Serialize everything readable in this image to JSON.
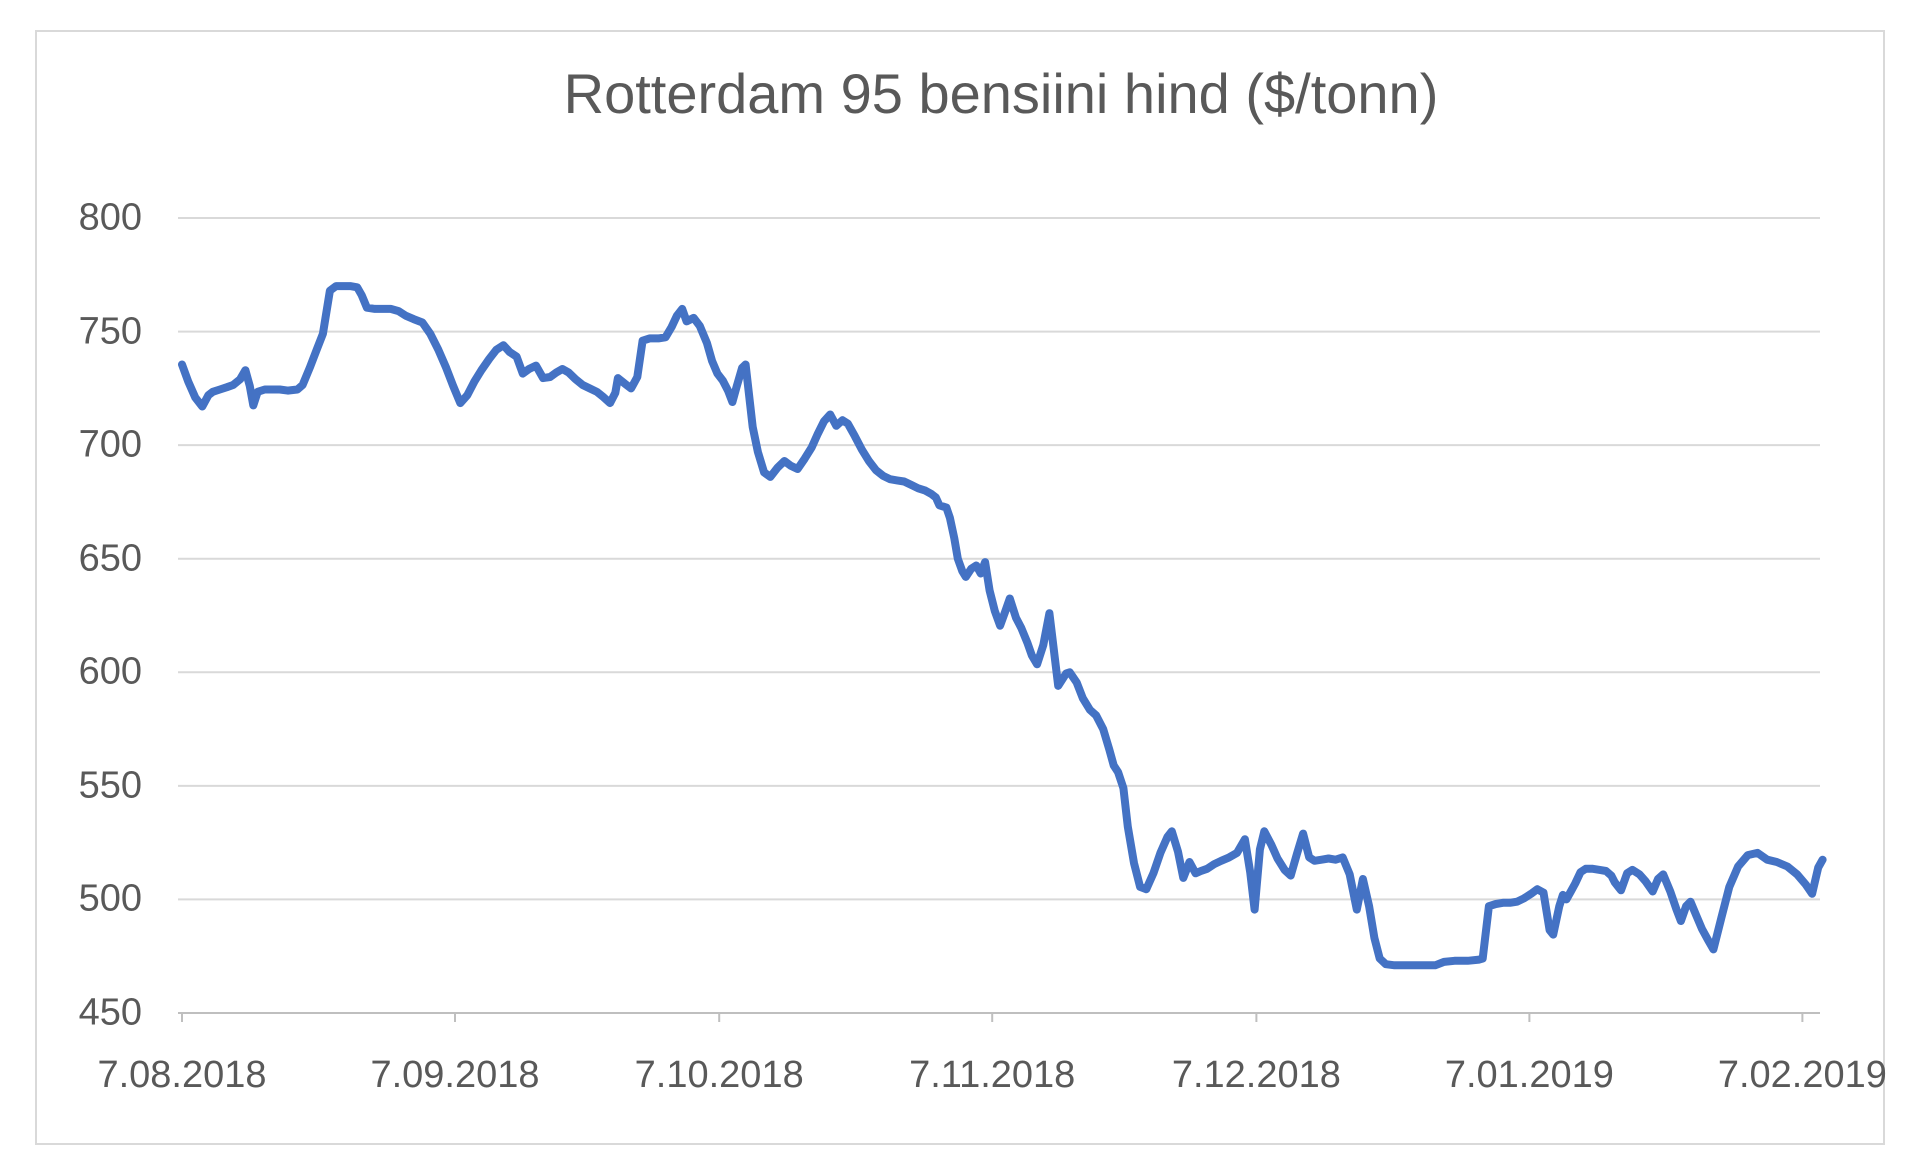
{
  "window": {
    "background": "#ffffff",
    "frame_border_color": "#d9d9d9"
  },
  "chart_data": {
    "type": "line",
    "title": "Rotterdam 95 bensiini hind ($/tonn)",
    "xlabel": "",
    "ylabel": "",
    "title_color": "#595959",
    "axis_text_color": "#595959",
    "gridline_color": "#d9d9d9",
    "axis_line_color": "#bfbfbf",
    "grid": true,
    "legend": "none",
    "ylim": [
      450,
      800
    ],
    "y_ticks": [
      800,
      750,
      700,
      650,
      600,
      550,
      500,
      450
    ],
    "x_range_days": [
      0,
      186
    ],
    "x_ticks": [
      {
        "day": 0,
        "label": "7.08.2018"
      },
      {
        "day": 31,
        "label": "7.09.2018"
      },
      {
        "day": 61,
        "label": "7.10.2018"
      },
      {
        "day": 92,
        "label": "7.11.2018"
      },
      {
        "day": 122,
        "label": "7.12.2018"
      },
      {
        "day": 153,
        "label": "7.01.2019"
      },
      {
        "day": 184,
        "label": "7.02.2019"
      }
    ],
    "series": [
      {
        "name": "Rotterdam 95 bensiini hind ($/tonn)",
        "color": "#4472c4",
        "stroke_width": 8,
        "points": [
          [
            0,
            735.5
          ],
          [
            0.7,
            728
          ],
          [
            1.5,
            721
          ],
          [
            2.3,
            717
          ],
          [
            3,
            722
          ],
          [
            3.5,
            723.5
          ],
          [
            4.3,
            724.5
          ],
          [
            5.1,
            725.5
          ],
          [
            5.8,
            726.5
          ],
          [
            6.6,
            729
          ],
          [
            7.2,
            733
          ],
          [
            7.7,
            726
          ],
          [
            8.1,
            717.5
          ],
          [
            8.6,
            723.5
          ],
          [
            9.4,
            724.5
          ],
          [
            10.2,
            724.5
          ],
          [
            11.1,
            724.5
          ],
          [
            12,
            724
          ],
          [
            13.1,
            724.5
          ],
          [
            13.7,
            726.5
          ],
          [
            14.5,
            734
          ],
          [
            15.3,
            742
          ],
          [
            16,
            749
          ],
          [
            16.8,
            768
          ],
          [
            17.5,
            770
          ],
          [
            18.3,
            770
          ],
          [
            19.1,
            770
          ],
          [
            19.9,
            769.5
          ],
          [
            20.4,
            766
          ],
          [
            21,
            760.5
          ],
          [
            21.9,
            760
          ],
          [
            22.8,
            760
          ],
          [
            23.7,
            760
          ],
          [
            24.6,
            759
          ],
          [
            25.4,
            757
          ],
          [
            26.3,
            755.5
          ],
          [
            27.3,
            754
          ],
          [
            28.2,
            749
          ],
          [
            29.1,
            742
          ],
          [
            30,
            734
          ],
          [
            30.8,
            726
          ],
          [
            31.6,
            718.5
          ],
          [
            32.4,
            722
          ],
          [
            33.2,
            728
          ],
          [
            34,
            733
          ],
          [
            34.9,
            738
          ],
          [
            35.7,
            742
          ],
          [
            36.5,
            744
          ],
          [
            37.2,
            741
          ],
          [
            38,
            739
          ],
          [
            38.7,
            731.5
          ],
          [
            39.4,
            733.5
          ],
          [
            40.2,
            735
          ],
          [
            41,
            729.5
          ],
          [
            41.8,
            730
          ],
          [
            42.5,
            732
          ],
          [
            43.2,
            733.5
          ],
          [
            43.9,
            732
          ],
          [
            44.7,
            729
          ],
          [
            45.5,
            726.5
          ],
          [
            46.3,
            725
          ],
          [
            47.1,
            723.5
          ],
          [
            47.9,
            721
          ],
          [
            48.6,
            718.5
          ],
          [
            49.2,
            723
          ],
          [
            49.5,
            729.5
          ],
          [
            50.3,
            727
          ],
          [
            51,
            725
          ],
          [
            51.7,
            730
          ],
          [
            52.3,
            746
          ],
          [
            53.1,
            747
          ],
          [
            54.1,
            747
          ],
          [
            54.9,
            747.5
          ],
          [
            55.6,
            752
          ],
          [
            56.2,
            757
          ],
          [
            56.8,
            760
          ],
          [
            57.3,
            754.5
          ],
          [
            58.1,
            756
          ],
          [
            58.8,
            752.5
          ],
          [
            59.6,
            745
          ],
          [
            60.2,
            737
          ],
          [
            60.8,
            731.5
          ],
          [
            61.4,
            728.5
          ],
          [
            62,
            724
          ],
          [
            62.5,
            719
          ],
          [
            63,
            726
          ],
          [
            63.6,
            734
          ],
          [
            64,
            735.5
          ],
          [
            64.8,
            708
          ],
          [
            65.4,
            697
          ],
          [
            66.1,
            688
          ],
          [
            66.8,
            686
          ],
          [
            67.6,
            690
          ],
          [
            68.4,
            693
          ],
          [
            69.1,
            691
          ],
          [
            69.9,
            689.5
          ],
          [
            70.7,
            694
          ],
          [
            71.5,
            699
          ],
          [
            72.2,
            705
          ],
          [
            72.9,
            710.5
          ],
          [
            73.6,
            713.5
          ],
          [
            74.3,
            708.5
          ],
          [
            75,
            711
          ],
          [
            75.6,
            709.5
          ],
          [
            76.4,
            704
          ],
          [
            77.2,
            698
          ],
          [
            78,
            693
          ],
          [
            78.8,
            689
          ],
          [
            79.6,
            686.5
          ],
          [
            80.4,
            685
          ],
          [
            81.2,
            684.5
          ],
          [
            82,
            684
          ],
          [
            82.8,
            682.5
          ],
          [
            83.6,
            681
          ],
          [
            84.4,
            680
          ],
          [
            85.1,
            678.5
          ],
          [
            85.6,
            677
          ],
          [
            86,
            673.5
          ],
          [
            86.8,
            672.5
          ],
          [
            87.2,
            668
          ],
          [
            87.7,
            659
          ],
          [
            88.1,
            650
          ],
          [
            88.6,
            644.5
          ],
          [
            89,
            642
          ],
          [
            89.6,
            645.5
          ],
          [
            90.2,
            647
          ],
          [
            90.7,
            643.5
          ],
          [
            91.2,
            648.5
          ],
          [
            91.7,
            636
          ],
          [
            92.3,
            627
          ],
          [
            92.9,
            620.5
          ],
          [
            93.5,
            627
          ],
          [
            94,
            632.5
          ],
          [
            94.7,
            624
          ],
          [
            95.3,
            619.5
          ],
          [
            96,
            613
          ],
          [
            96.5,
            607.5
          ],
          [
            97.1,
            603.5
          ],
          [
            97.8,
            612
          ],
          [
            98.5,
            626
          ],
          [
            99.5,
            594
          ],
          [
            100.4,
            599.5
          ],
          [
            100.8,
            600
          ],
          [
            101.6,
            595.5
          ],
          [
            102.3,
            588.5
          ],
          [
            103.1,
            583.5
          ],
          [
            103.8,
            581
          ],
          [
            104.6,
            575
          ],
          [
            105.3,
            566
          ],
          [
            105.8,
            559
          ],
          [
            106.3,
            556
          ],
          [
            106.9,
            549
          ],
          [
            107.4,
            532
          ],
          [
            108.1,
            516
          ],
          [
            108.8,
            505.5
          ],
          [
            109.5,
            504.5
          ],
          [
            110.3,
            511.5
          ],
          [
            111.1,
            520.5
          ],
          [
            111.9,
            527.5
          ],
          [
            112.4,
            530
          ],
          [
            113.1,
            521
          ],
          [
            113.7,
            509.5
          ],
          [
            114.4,
            516.5
          ],
          [
            115.1,
            511.5
          ],
          [
            115.7,
            512.5
          ],
          [
            116.4,
            513.5
          ],
          [
            117.2,
            515.5
          ],
          [
            118,
            517
          ],
          [
            118.9,
            518.5
          ],
          [
            119.8,
            520.5
          ],
          [
            120.7,
            526.5
          ],
          [
            121.3,
            512
          ],
          [
            121.8,
            495.5
          ],
          [
            122.4,
            522
          ],
          [
            122.9,
            530
          ],
          [
            123.7,
            524
          ],
          [
            124.4,
            518
          ],
          [
            125.2,
            513
          ],
          [
            125.9,
            510.5
          ],
          [
            126.6,
            520
          ],
          [
            127.3,
            529
          ],
          [
            128,
            518.5
          ],
          [
            128.6,
            517
          ],
          [
            129.4,
            517.5
          ],
          [
            130.2,
            518
          ],
          [
            131,
            517.5
          ],
          [
            131.8,
            518.5
          ],
          [
            132.6,
            511
          ],
          [
            133.4,
            495.5
          ],
          [
            134.1,
            509
          ],
          [
            134.8,
            497
          ],
          [
            135.4,
            483
          ],
          [
            136,
            474
          ],
          [
            136.7,
            471.5
          ],
          [
            137.7,
            471
          ],
          [
            139,
            471
          ],
          [
            140.5,
            471
          ],
          [
            142.3,
            471
          ],
          [
            143.3,
            472.5
          ],
          [
            144.5,
            473
          ],
          [
            146,
            473
          ],
          [
            147.3,
            473.5
          ],
          [
            147.7,
            474
          ],
          [
            148.4,
            497
          ],
          [
            149.2,
            498
          ],
          [
            150,
            498.5
          ],
          [
            150.8,
            498.5
          ],
          [
            151.6,
            499
          ],
          [
            152.4,
            500.5
          ],
          [
            153.2,
            502.5
          ],
          [
            153.9,
            504.5
          ],
          [
            154.6,
            503
          ],
          [
            155.3,
            486.5
          ],
          [
            155.7,
            484.5
          ],
          [
            156.4,
            497
          ],
          [
            156.8,
            502
          ],
          [
            157.2,
            500
          ],
          [
            157.7,
            503.5
          ],
          [
            158.2,
            507
          ],
          [
            158.8,
            512
          ],
          [
            159.4,
            513.5
          ],
          [
            160.2,
            513.5
          ],
          [
            161,
            513
          ],
          [
            161.7,
            512.5
          ],
          [
            162.3,
            510.5
          ],
          [
            162.7,
            507.5
          ],
          [
            163.4,
            504
          ],
          [
            164.1,
            511.5
          ],
          [
            164.7,
            513
          ],
          [
            165.5,
            511
          ],
          [
            166.2,
            508
          ],
          [
            167,
            503.5
          ],
          [
            167.6,
            509
          ],
          [
            168.2,
            511
          ],
          [
            169,
            503.5
          ],
          [
            169.7,
            495.5
          ],
          [
            170.2,
            490.5
          ],
          [
            170.8,
            497
          ],
          [
            171.3,
            499
          ],
          [
            172,
            492.5
          ],
          [
            172.6,
            487
          ],
          [
            173.3,
            482
          ],
          [
            173.9,
            478
          ],
          [
            174.8,
            492
          ],
          [
            175.7,
            505.5
          ],
          [
            176.7,
            514.5
          ],
          [
            177.8,
            519.5
          ],
          [
            178.9,
            520.5
          ],
          [
            180,
            517.5
          ],
          [
            181.1,
            516.5
          ],
          [
            182.3,
            514.5
          ],
          [
            183.4,
            511
          ],
          [
            184.4,
            506.5
          ],
          [
            185.1,
            502.5
          ],
          [
            185.8,
            514
          ],
          [
            186.3,
            517.5
          ]
        ]
      }
    ]
  }
}
